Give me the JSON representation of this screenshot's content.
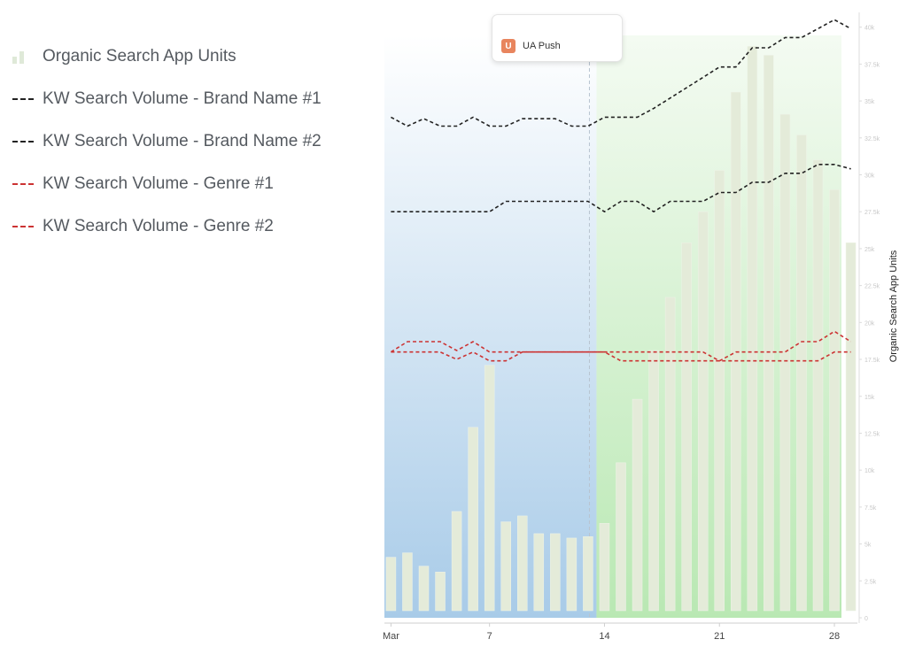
{
  "legend": {
    "items": [
      {
        "label": "Organic Search App Units",
        "kind": "bar",
        "color": "#dfe9d8"
      },
      {
        "label": "KW Search Volume - Brand Name #1",
        "kind": "dash",
        "color": "#222222"
      },
      {
        "label": "KW Search Volume - Brand Name #2",
        "kind": "dash",
        "color": "#222222"
      },
      {
        "label": "KW Search Volume - Genre #1",
        "kind": "dash",
        "color": "#cc3333"
      },
      {
        "label": "KW Search Volume - Genre #2",
        "kind": "dash",
        "color": "#cc3333"
      }
    ]
  },
  "tooltip": {
    "date": "",
    "badge": "U",
    "label": "UA Push",
    "badge_color": "#e8855e"
  },
  "chart_data": {
    "type": "bar",
    "ylabel": "Organic Search App Units",
    "x_tick_labels": [
      "Mar",
      "7",
      "14",
      "21",
      "28"
    ],
    "x_tick_days": [
      1,
      7,
      14,
      21,
      28
    ],
    "regions": [
      {
        "name": "before",
        "from_day": 1,
        "to_day": 14,
        "color": "#a8cbe8"
      },
      {
        "name": "after",
        "from_day": 14,
        "to_day": 28,
        "color": "#c9ecc4"
      }
    ],
    "event_day": 14,
    "y_ticks": [
      "0",
      "2.5k",
      "5k",
      "7.5k",
      "10k",
      "12.5k",
      "15k",
      "17.5k",
      "20k",
      "22.5k",
      "25k",
      "27.5k",
      "30k",
      "32.5k",
      "35k",
      "37.5k",
      "40k"
    ],
    "bars": {
      "days": [
        1,
        2,
        3,
        4,
        5,
        6,
        7,
        8,
        9,
        10,
        11,
        12,
        13,
        14,
        15,
        16,
        17,
        18,
        19,
        20,
        21,
        22,
        23,
        24,
        25,
        26,
        27,
        28,
        29
      ],
      "values": [
        4100,
        4400,
        3500,
        3100,
        7200,
        12900,
        17100,
        6500,
        6900,
        5700,
        5700,
        5400,
        5500,
        6400,
        10500,
        14800,
        18100,
        21700,
        25400,
        27500,
        30300,
        35600,
        38700,
        38100,
        34100,
        32700,
        31000,
        29000,
        25400
      ]
    },
    "series": [
      {
        "name": "KW Search Volume - Brand Name #1",
        "style": "dash",
        "color": "#222222",
        "values": [
          33900,
          33300,
          33800,
          33300,
          33300,
          33900,
          33300,
          33300,
          33800,
          33800,
          33800,
          33300,
          33300,
          33900,
          33900,
          33900,
          34500,
          35200,
          35900,
          36600,
          37300,
          37300,
          38600,
          38600,
          39300,
          39300,
          39900,
          40500,
          39900
        ]
      },
      {
        "name": "KW Search Volume - Brand Name #2",
        "style": "dash",
        "color": "#222222",
        "values": [
          27500,
          27500,
          27500,
          27500,
          27500,
          27500,
          27500,
          28200,
          28200,
          28200,
          28200,
          28200,
          28200,
          27500,
          28200,
          28200,
          27500,
          28200,
          28200,
          28200,
          28800,
          28800,
          29500,
          29500,
          30100,
          30100,
          30700,
          30700,
          30400
        ]
      },
      {
        "name": "KW Search Volume - Genre #1",
        "style": "dash",
        "color": "#cc3333",
        "values": [
          18000,
          18700,
          18700,
          18700,
          18100,
          18700,
          18000,
          18000,
          18000,
          18000,
          18000,
          18000,
          18000,
          18000,
          18000,
          18000,
          18000,
          18000,
          18000,
          18000,
          17400,
          18000,
          18000,
          18000,
          18000,
          18700,
          18700,
          19400,
          18700
        ]
      },
      {
        "name": "KW Search Volume - Genre #2",
        "style": "dash",
        "color": "#cc3333",
        "values": [
          18000,
          18000,
          18000,
          18000,
          17500,
          18000,
          17400,
          17400,
          18000,
          18000,
          18000,
          18000,
          18000,
          18000,
          17400,
          17400,
          17400,
          17400,
          17400,
          17400,
          17400,
          17400,
          17400,
          17400,
          17400,
          17400,
          17400,
          18000,
          18000
        ]
      }
    ],
    "y_range": [
      0,
      41000
    ],
    "colors": {
      "bar": "#e4ebd9",
      "bar_edge": "#eef3e8"
    }
  }
}
